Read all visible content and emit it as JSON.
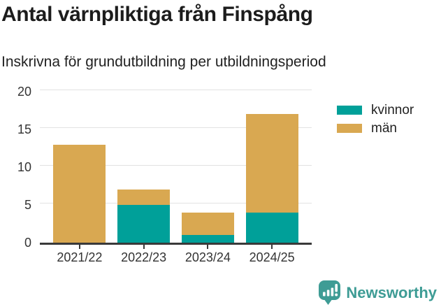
{
  "header": {
    "title": "Antal värnpliktiga från Finspång",
    "subtitle": "Inskrivna för grundutbildning per utbildningsperiod"
  },
  "chart_data": {
    "type": "bar",
    "stacked": true,
    "title": "Antal värnpliktiga från Finspång",
    "subtitle": "Inskrivna för grundutbildning per utbildningsperiod",
    "categories": [
      "2021/22",
      "2022/23",
      "2023/24",
      "2024/25"
    ],
    "series": [
      {
        "name": "kvinnor",
        "color": "#00A099",
        "values": [
          0,
          5,
          1,
          4
        ]
      },
      {
        "name": "män",
        "color": "#D9A851",
        "values": [
          13,
          2,
          3,
          13
        ]
      }
    ],
    "stack_totals": [
      13,
      7,
      4,
      17
    ],
    "xlabel": "",
    "ylabel": "",
    "ylim": [
      0,
      20
    ],
    "yticks": [
      0,
      5,
      10,
      15,
      20
    ],
    "grid": true,
    "legend_position": "right"
  },
  "footer": {
    "brand": "Newsworthy"
  },
  "colors": {
    "kvinnor": "#00A099",
    "man": "#D9A851",
    "brand_teal": "#3E9C95",
    "gridline": "#E2E2E2",
    "axis": "#3A3A3A",
    "title_text": "#1C1C1C",
    "axis_text": "#333333"
  }
}
